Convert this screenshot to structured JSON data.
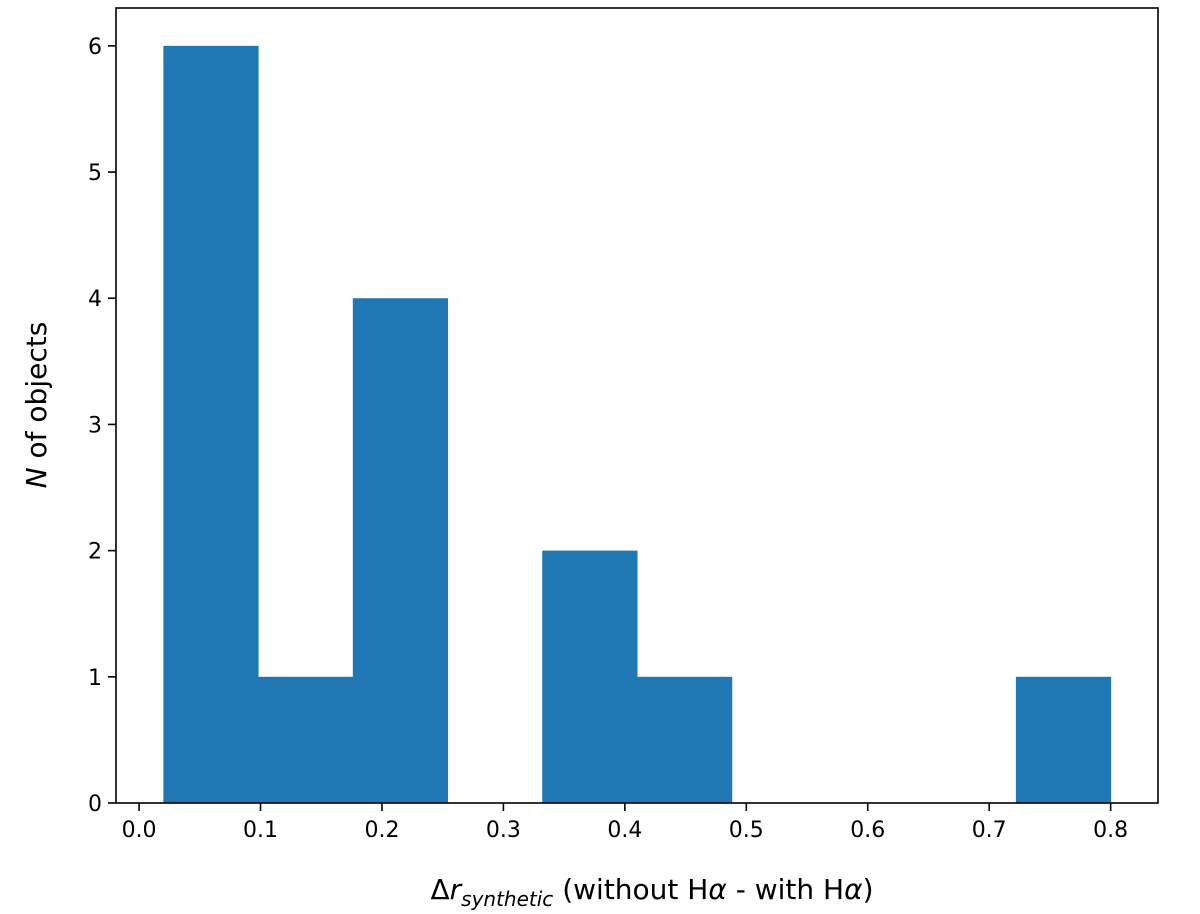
{
  "chart_data": {
    "type": "bar",
    "title": "",
    "xlabel_parts": {
      "delta": "Δ",
      "symbol": "r",
      "subscript": "synthetic",
      "rest_prefix": " (without H",
      "alpha_1": "α",
      "rest_middle": " - with H",
      "alpha_2": "α",
      "rest_suffix": ")"
    },
    "ylabel_parts": {
      "symbol": "N",
      "rest": " of objects"
    },
    "xlim": [
      -0.019,
      0.839
    ],
    "ylim": [
      0,
      6.3
    ],
    "xticks": [
      0.0,
      0.1,
      0.2,
      0.3,
      0.4,
      0.5,
      0.6,
      0.7,
      0.8
    ],
    "xtick_labels": [
      "0.0",
      "0.1",
      "0.2",
      "0.3",
      "0.4",
      "0.5",
      "0.6",
      "0.7",
      "0.8"
    ],
    "yticks": [
      0,
      1,
      2,
      3,
      4,
      5,
      6
    ],
    "ytick_labels": [
      "0",
      "1",
      "2",
      "3",
      "4",
      "5",
      "6"
    ],
    "bin_edges": [
      0.02,
      0.098,
      0.176,
      0.254,
      0.332,
      0.41,
      0.488,
      0.566,
      0.644,
      0.722,
      0.8
    ],
    "counts": [
      6,
      1,
      4,
      0,
      2,
      1,
      0,
      0,
      0,
      1
    ],
    "bar_color": "#1f77b4",
    "grid": false,
    "legend": "none"
  }
}
